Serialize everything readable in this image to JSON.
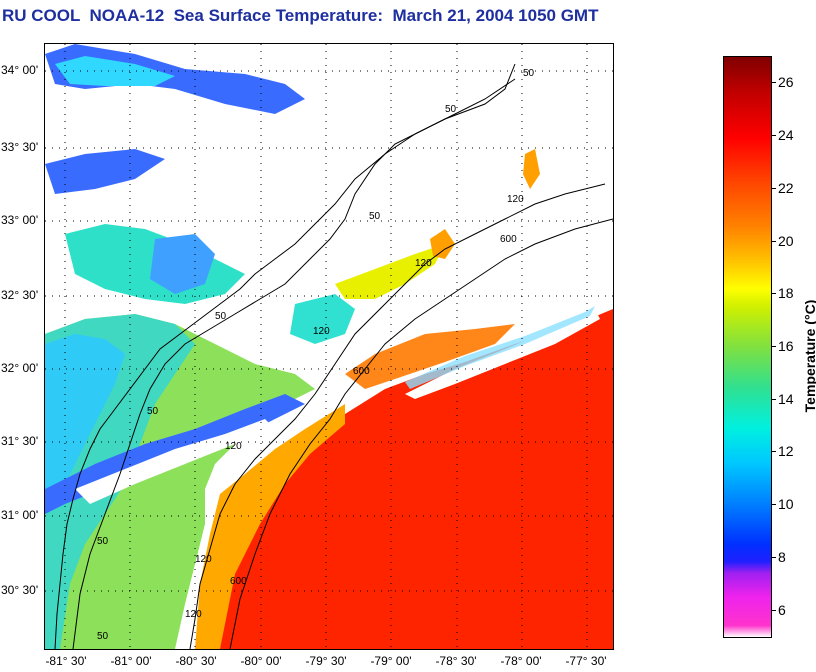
{
  "title": "RU COOL  NOAA-12  Sea Surface Temperature:  March 21, 2004 1050 GMT",
  "map": {
    "lat_labels": [
      "34° 00'",
      "33° 30'",
      "33° 00'",
      "32° 30'",
      "32° 00'",
      "31° 30'",
      "31° 00'",
      "30° 30'"
    ],
    "lon_labels": [
      "-81° 30'",
      "-81° 00'",
      "-80° 30'",
      "-80° 00'",
      "-79° 30'",
      "-79° 00'",
      "-78° 30'",
      "-78° 00'",
      "-77° 30'"
    ],
    "contour_labels": [
      "50",
      "50",
      "50",
      "50",
      "50",
      "50",
      "120",
      "120",
      "120",
      "120",
      "120",
      "600",
      "600",
      "600",
      "120",
      "50"
    ],
    "colors": {
      "cold": "#3a6bff",
      "cool": "#2ee0c8",
      "mild": "#8ce05a",
      "warm": "#ffa000",
      "hot": "#ff2a00",
      "cloud": "#ffffff",
      "cold_edge": "#cc33ff"
    }
  },
  "colorbar": {
    "title": "Temperature (°C)",
    "ticks": [
      "26",
      "24",
      "22",
      "20",
      "18",
      "16",
      "14",
      "12",
      "10",
      "8",
      "6"
    ],
    "range": [
      5,
      27
    ],
    "tick_values": [
      26,
      24,
      22,
      20,
      18,
      16,
      14,
      12,
      10,
      8,
      6
    ]
  }
}
